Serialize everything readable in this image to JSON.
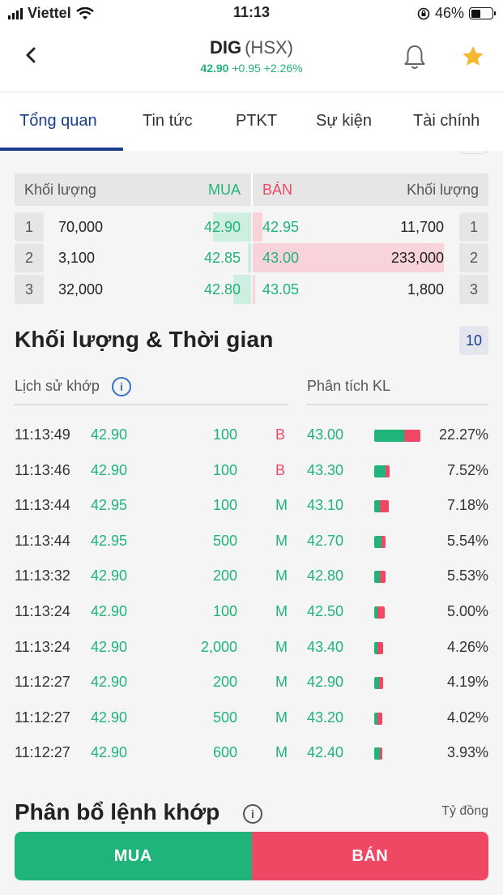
{
  "status": {
    "carrier": "Viettel",
    "time": "11:13",
    "battery": "46%",
    "battery_level": 0.46
  },
  "header": {
    "symbol": "DIG",
    "exchange": "(HSX)",
    "price": "42.90",
    "change": "+0.95",
    "change_pct": "+2.26%"
  },
  "tabs": [
    "Tổng quan",
    "Tin tức",
    "PTKT",
    "Sự kiện",
    "Tài chính"
  ],
  "orderbook": {
    "head": {
      "vol_left": "Khối lượng",
      "buy": "MUA",
      "sell": "BÁN",
      "vol_right": "Khối lượng"
    },
    "rows": [
      {
        "idx": "1",
        "buy_vol": "70,000",
        "buy_price": "42.90",
        "sell_price": "42.95",
        "sell_vol": "11,700",
        "buy_bar": 0.28,
        "sell_bar": 0.05
      },
      {
        "idx": "2",
        "buy_vol": "3,100",
        "buy_price": "42.85",
        "sell_price": "43.00",
        "sell_vol": "233,000",
        "buy_bar": 0.02,
        "sell_bar": 1.0
      },
      {
        "idx": "3",
        "buy_vol": "32,000",
        "buy_price": "42.80",
        "sell_price": "43.05",
        "sell_vol": "1,800",
        "buy_bar": 0.13,
        "sell_bar": 0.01
      }
    ]
  },
  "volume_time": {
    "title": "Khối lượng & Thời gian",
    "count": "10",
    "history_label": "Lịch sử khớp",
    "analysis_label": "Phân tích KL",
    "trades": [
      {
        "time": "11:13:49",
        "price": "42.90",
        "volume": "100",
        "side": "B"
      },
      {
        "time": "11:13:46",
        "price": "42.90",
        "volume": "100",
        "side": "B"
      },
      {
        "time": "11:13:44",
        "price": "42.95",
        "volume": "100",
        "side": "M"
      },
      {
        "time": "11:13:44",
        "price": "42.95",
        "volume": "500",
        "side": "M"
      },
      {
        "time": "11:13:32",
        "price": "42.90",
        "volume": "200",
        "side": "M"
      },
      {
        "time": "11:13:24",
        "price": "42.90",
        "volume": "100",
        "side": "M"
      },
      {
        "time": "11:13:24",
        "price": "42.90",
        "volume": "2,000",
        "side": "M"
      },
      {
        "time": "11:12:27",
        "price": "42.90",
        "volume": "200",
        "side": "M"
      },
      {
        "time": "11:12:27",
        "price": "42.90",
        "volume": "500",
        "side": "M"
      },
      {
        "time": "11:12:27",
        "price": "42.90",
        "volume": "600",
        "side": "M"
      }
    ],
    "analysis": [
      {
        "price": "43.00",
        "pct": "22.27%",
        "share": 0.2227,
        "buy_ratio": 0.65
      },
      {
        "price": "43.30",
        "pct": "7.52%",
        "share": 0.0752,
        "buy_ratio": 0.75
      },
      {
        "price": "43.10",
        "pct": "7.18%",
        "share": 0.0718,
        "buy_ratio": 0.4
      },
      {
        "price": "42.70",
        "pct": "5.54%",
        "share": 0.0554,
        "buy_ratio": 0.6
      },
      {
        "price": "42.80",
        "pct": "5.53%",
        "share": 0.0553,
        "buy_ratio": 0.5
      },
      {
        "price": "42.50",
        "pct": "5.00%",
        "share": 0.05,
        "buy_ratio": 0.3
      },
      {
        "price": "43.40",
        "pct": "4.26%",
        "share": 0.0426,
        "buy_ratio": 0.4
      },
      {
        "price": "42.90",
        "pct": "4.19%",
        "share": 0.0419,
        "buy_ratio": 0.6
      },
      {
        "price": "43.20",
        "pct": "4.02%",
        "share": 0.0402,
        "buy_ratio": 0.4
      },
      {
        "price": "42.40",
        "pct": "3.93%",
        "share": 0.0393,
        "buy_ratio": 0.7
      }
    ]
  },
  "distribution": {
    "title": "Phân bổ lệnh khớp",
    "unit": "Tỷ đồng"
  },
  "actions": {
    "buy": "MUA",
    "sell": "BÁN"
  },
  "colors": {
    "up": "#1fb47a",
    "down": "#ef4865",
    "primary": "#1a3f8a"
  }
}
